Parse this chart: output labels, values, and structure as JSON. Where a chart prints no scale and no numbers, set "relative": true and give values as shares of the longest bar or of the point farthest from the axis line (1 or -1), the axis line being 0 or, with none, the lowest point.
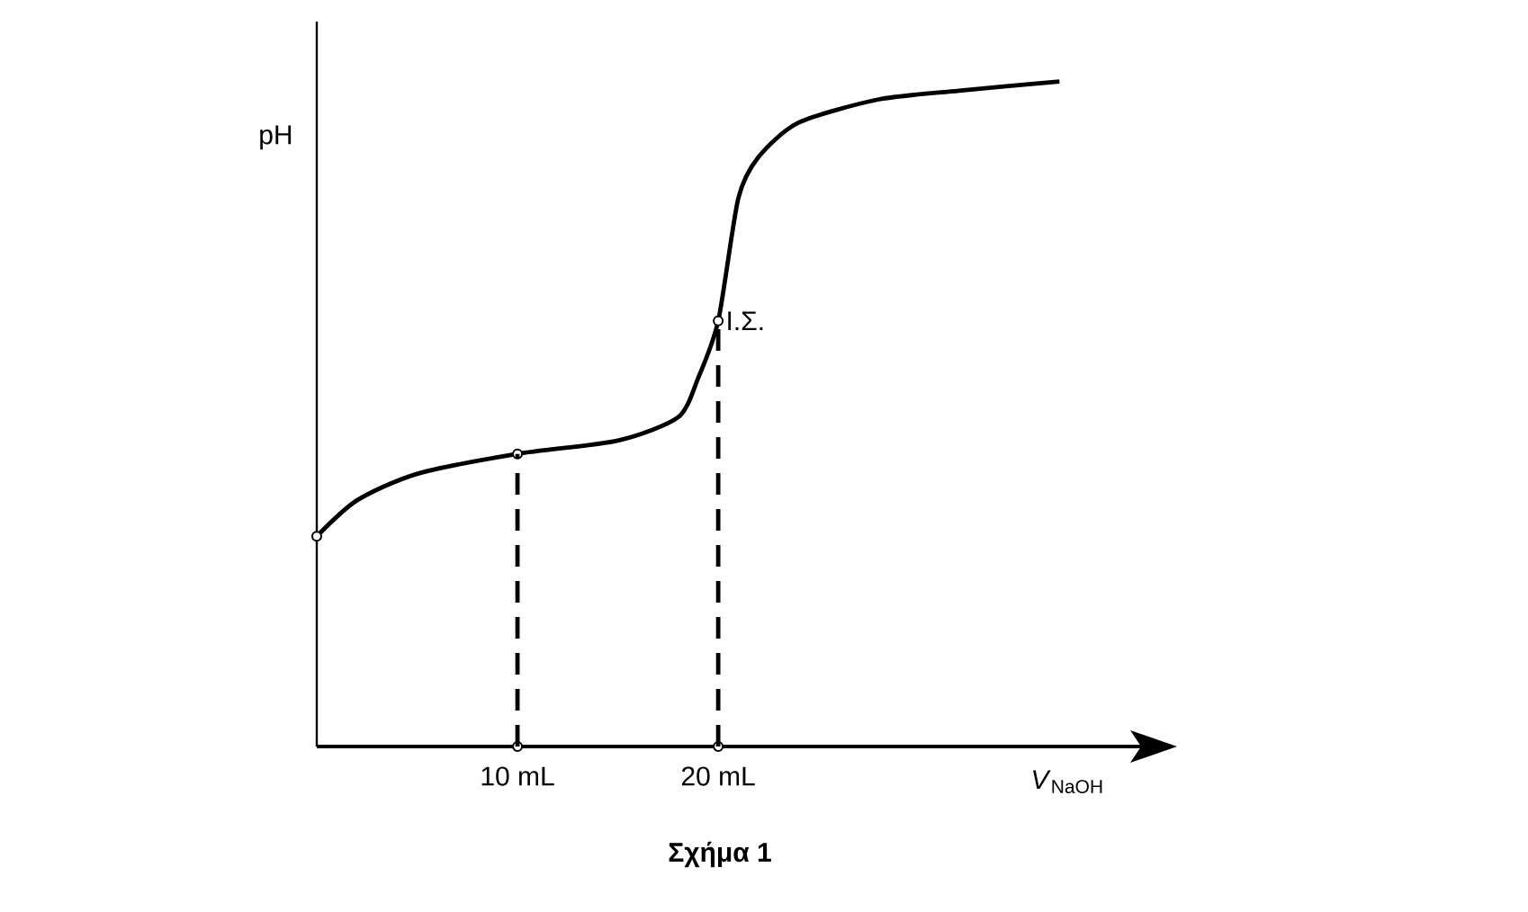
{
  "chart_data": {
    "type": "line",
    "relative": true,
    "ylabel": "pH",
    "xlabel": "*V*$_{NaOH}$",
    "xlim": [
      0,
      42.5
    ],
    "xticks": [
      {
        "value": 10,
        "label": "10 mL"
      },
      {
        "value": 20,
        "label": "20 mL"
      }
    ],
    "series": [
      {
        "color": "#000000",
        "line_style": "solid",
        "x": [
          0,
          2,
          5,
          10,
          15,
          18,
          19,
          20,
          21,
          22,
          24,
          28,
          32,
          37
        ],
        "values": [
          0.316,
          0.37,
          0.41,
          0.44,
          0.46,
          0.495,
          0.554,
          0.64,
          0.824,
          0.886,
          0.938,
          0.973,
          0.986,
          1
        ]
      },
      {
        "type": "scatter",
        "color": "#000000",
        "marker": "circle",
        "x": [
          0,
          10,
          20,
          10,
          20
        ],
        "values": [
          0.316,
          0.44,
          0.64,
          0,
          0
        ]
      }
    ],
    "ref_lines": [
      {
        "axis": "x",
        "value": 10,
        "line_style": "dashed"
      },
      {
        "axis": "x",
        "value": 20,
        "line_style": "dashed"
      }
    ],
    "annotations": [
      {
        "text": "Ι.Σ.",
        "x": 20,
        "y": 0.64
      },
      "Σχήμα 1"
    ]
  }
}
